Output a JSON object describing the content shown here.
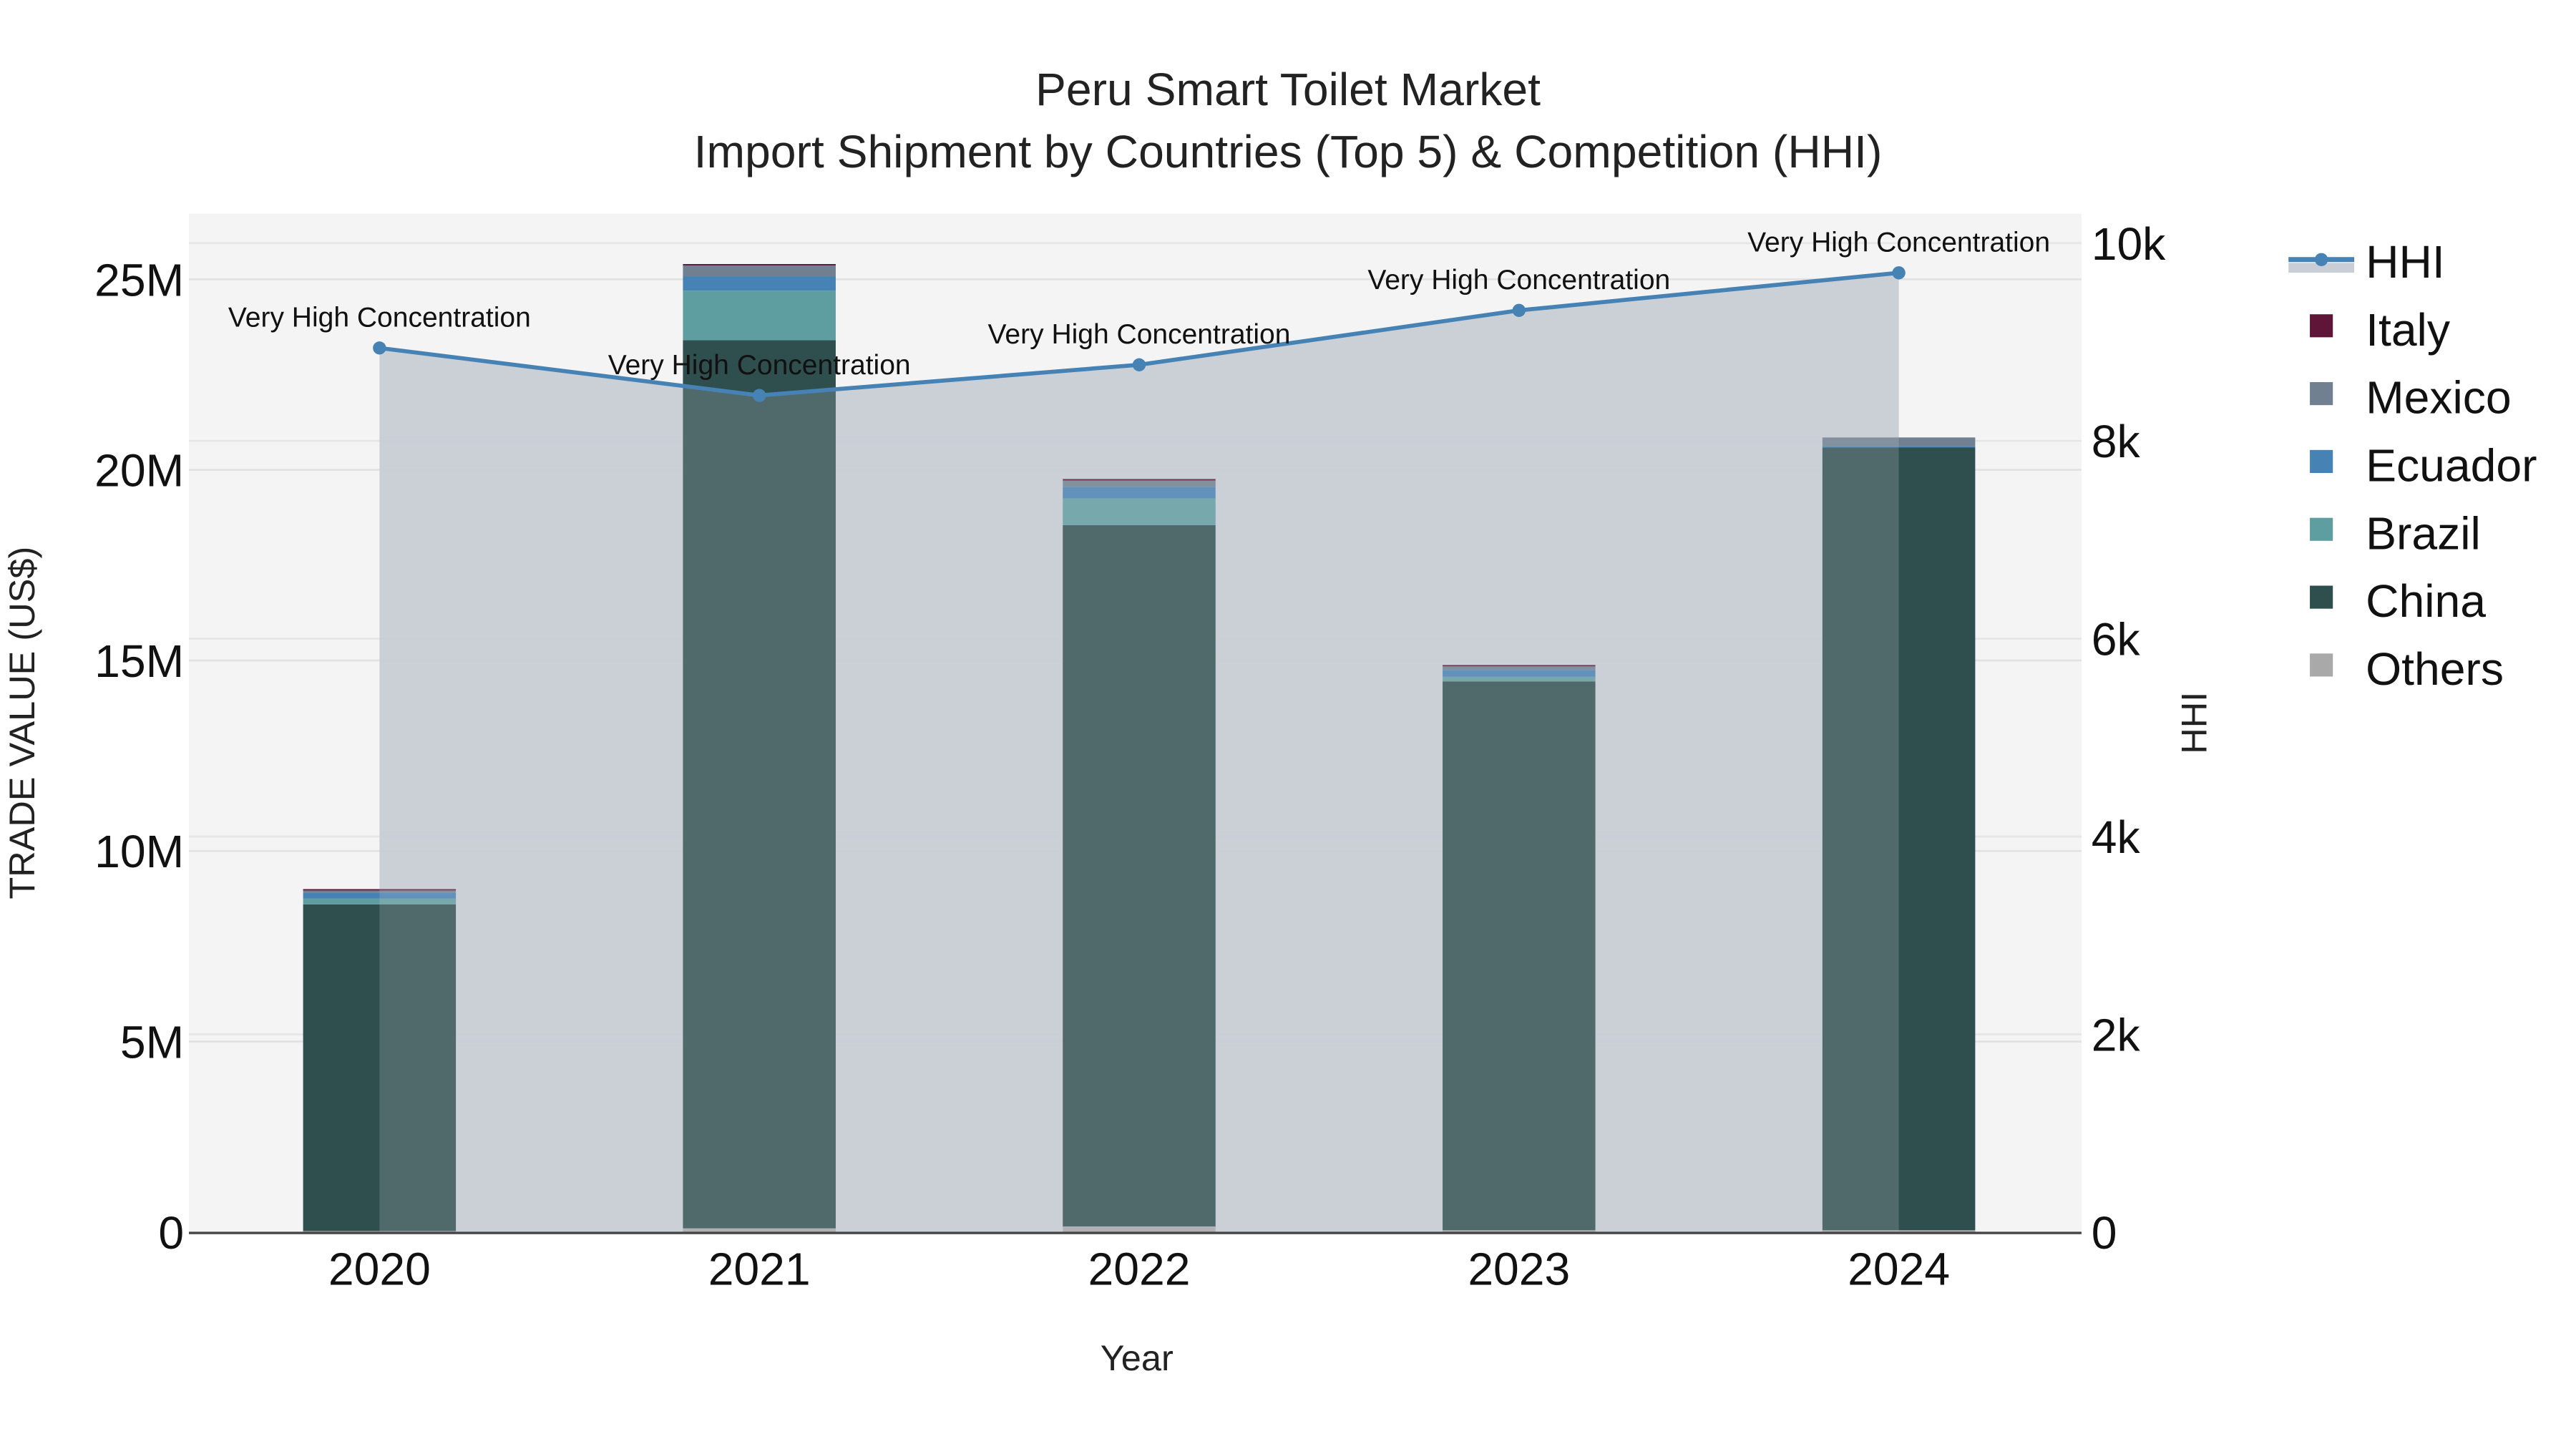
{
  "header": {
    "title_line1": "Peru Smart Toilet Market",
    "title_line2": "Import Shipment by Countries (Top 5) & Competition (HHI)"
  },
  "axes": {
    "x_title": "Year",
    "y_left_title": "TRADE VALUE (US$)",
    "y_right_title": "HHI",
    "y_left_ticks": [
      "0",
      "5M",
      "10M",
      "15M",
      "20M",
      "25M"
    ],
    "y_right_ticks": [
      "0",
      "2k",
      "4k",
      "6k",
      "8k",
      "10k"
    ],
    "x_ticks": [
      "2020",
      "2021",
      "2022",
      "2023",
      "2024"
    ]
  },
  "legend": [
    {
      "label": "HHI",
      "color": "#4682B4",
      "kind": "line"
    },
    {
      "label": "Italy",
      "color": "#5E1537",
      "kind": "box"
    },
    {
      "label": "Mexico",
      "color": "#708090",
      "kind": "box"
    },
    {
      "label": "Ecuador",
      "color": "#4682B4",
      "kind": "box"
    },
    {
      "label": "Brazil",
      "color": "#5F9EA0",
      "kind": "box"
    },
    {
      "label": "China",
      "color": "#2F4F4F",
      "kind": "box"
    },
    {
      "label": "Others",
      "color": "#A9A9A9",
      "kind": "box"
    }
  ],
  "annotations": [
    "Very High Concentration",
    "Very High Concentration",
    "Very High Concentration",
    "Very High Concentration",
    "Very High Concentration"
  ],
  "colors": {
    "plot_bg": "#F4F4F4",
    "hhi_fill": "#C9CDD5",
    "hhi_line": "#4682B4",
    "grid": "#E2E2E2"
  },
  "chart_data": {
    "type": "bar",
    "title": "Peru Smart Toilet Market — Import Shipment by Countries (Top 5) & Competition (HHI)",
    "xlabel": "Year",
    "ylabel": "TRADE VALUE (US$)",
    "y2label": "HHI",
    "ylim": [
      0,
      26500000
    ],
    "y2lim": [
      0,
      10400
    ],
    "categories": [
      "2020",
      "2021",
      "2022",
      "2023",
      "2024"
    ],
    "stacked": true,
    "series": [
      {
        "name": "Others",
        "color": "#A9A9A9",
        "values": [
          30000,
          100000,
          150000,
          50000,
          50000
        ]
      },
      {
        "name": "China",
        "color": "#2F4F4F",
        "values": [
          8570000,
          23300000,
          18400000,
          14400000,
          20550000
        ]
      },
      {
        "name": "Brazil",
        "color": "#5F9EA0",
        "values": [
          150000,
          1300000,
          700000,
          120000,
          0
        ]
      },
      {
        "name": "Ecuador",
        "color": "#4682B4",
        "values": [
          150000,
          380000,
          300000,
          180000,
          20000
        ]
      },
      {
        "name": "Mexico",
        "color": "#708090",
        "values": [
          70000,
          300000,
          170000,
          100000,
          230000
        ]
      },
      {
        "name": "Italy",
        "color": "#5E1537",
        "values": [
          30000,
          20000,
          40000,
          30000,
          0
        ]
      }
    ],
    "line_series": {
      "name": "HHI",
      "axis": "right",
      "color": "#4682B4",
      "fill": "tozeroy",
      "values": [
        8940,
        8460,
        8770,
        9320,
        9700
      ],
      "labels": [
        "Very High Concentration",
        "Very High Concentration",
        "Very High Concentration",
        "Very High Concentration",
        "Very High Concentration"
      ]
    },
    "legend_position": "right",
    "grid": true
  }
}
